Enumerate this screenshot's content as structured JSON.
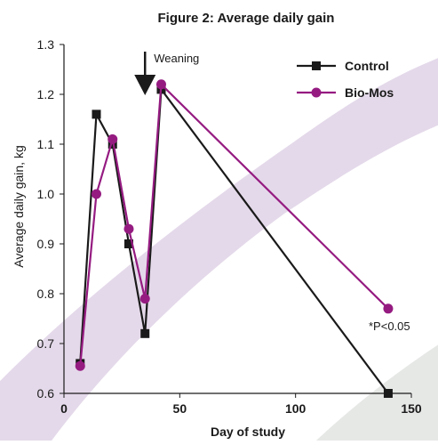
{
  "chart_data": {
    "type": "line",
    "title": "Figure 2: Average daily gain",
    "xlabel": "Day of study",
    "ylabel": "Average daily gain, kg",
    "xlim": [
      0,
      150
    ],
    "ylim": [
      0.6,
      1.3
    ],
    "x_ticks": [
      "0",
      "50",
      "100",
      "150"
    ],
    "y_ticks": [
      "0.6",
      "0.7",
      "0.8",
      "0.9",
      "1.0",
      "1.1",
      "1.2",
      "1.3"
    ],
    "grid": false,
    "legend_position": "top-right",
    "series": [
      {
        "name": "Control",
        "color": "#1a1a1a",
        "marker": "square",
        "x": [
          7,
          14,
          21,
          28,
          35,
          42,
          140
        ],
        "y": [
          0.66,
          1.16,
          1.1,
          0.9,
          0.72,
          1.21,
          0.6
        ]
      },
      {
        "name": "Bio-Mos",
        "color": "#951b81",
        "marker": "circle",
        "x": [
          7,
          14,
          21,
          28,
          35,
          42,
          140
        ],
        "y": [
          0.655,
          1.0,
          1.11,
          0.93,
          0.79,
          1.22,
          0.77
        ]
      }
    ],
    "annotations": {
      "weaning_label": "Weaning",
      "weaning_x": 35,
      "significance_label": "*P<0.05"
    },
    "background": {
      "band_colors": [
        "#e4d9ea",
        "#e6e8e6"
      ]
    }
  }
}
